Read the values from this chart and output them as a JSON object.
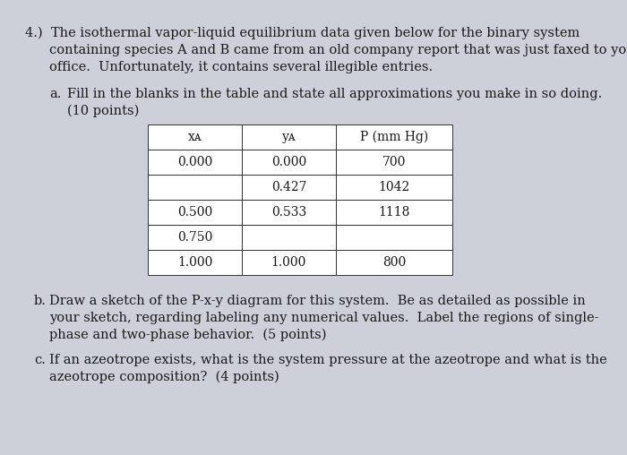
{
  "background_color": "#cdd0d8",
  "paper_color": "#ede9e3",
  "title_line1": "4.)  The isothermal vapor-liquid equilibrium data given below for the binary system",
  "title_line2": "     containing species A and B came from an old company report that was just faxed to your",
  "title_line3": "     office.  Unfortunately, it contains several illegible entries.",
  "part_a_label": "a.",
  "part_a_line1": "Fill in the blanks in the table and state all approximations you make in so doing.",
  "part_a_line2": "(10 points)",
  "table_col0_header": "xᴀ",
  "table_col1_header": "yᴀ",
  "table_col2_header": "P (mm Hg)",
  "table_data": [
    [
      "0.000",
      "0.000",
      "700"
    ],
    [
      "",
      "0.427",
      "1042"
    ],
    [
      "0.500",
      "0.533",
      "1118"
    ],
    [
      "0.750",
      "",
      ""
    ],
    [
      "1.000",
      "1.000",
      "800"
    ]
  ],
  "part_b_label": "b.",
  "part_b_line1": "Draw a sketch of the P-x-y diagram for this system.  Be as detailed as possible in",
  "part_b_line2": "your sketch, regarding labeling any numerical values.  Label the regions of single-",
  "part_b_line3": "phase and two-phase behavior.  (5 points)",
  "part_c_label": "c.",
  "part_c_line1": "If an azeotrope exists, what is the system pressure at the azeotrope and what is the",
  "part_c_line2": "azeotrope composition?  (4 points)",
  "fs_main": 10.5,
  "fs_table": 10.0
}
